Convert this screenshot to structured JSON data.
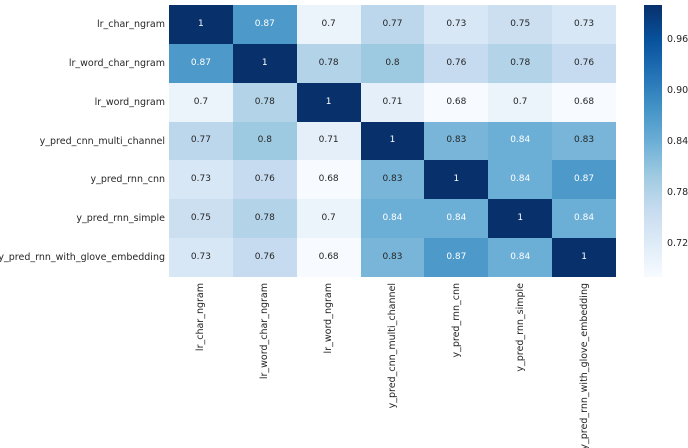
{
  "chart_data": {
    "type": "heatmap",
    "title": "",
    "xlabel": "",
    "ylabel": "",
    "categories": [
      "lr_char_ngram",
      "lr_word_char_ngram",
      "lr_word_ngram",
      "y_pred_cnn_multi_channel",
      "y_pred_rnn_cnn",
      "y_pred_rnn_simple",
      "y_pred_rnn_with_glove_embedding"
    ],
    "matrix": [
      [
        1,
        0.87,
        0.7,
        0.77,
        0.73,
        0.75,
        0.73
      ],
      [
        0.87,
        1,
        0.78,
        0.8,
        0.76,
        0.78,
        0.76
      ],
      [
        0.7,
        0.78,
        1,
        0.71,
        0.68,
        0.7,
        0.68
      ],
      [
        0.77,
        0.8,
        0.71,
        1,
        0.83,
        0.84,
        0.83
      ],
      [
        0.73,
        0.76,
        0.68,
        0.83,
        1,
        0.84,
        0.87
      ],
      [
        0.75,
        0.78,
        0.7,
        0.84,
        0.84,
        1,
        0.84
      ],
      [
        0.73,
        0.76,
        0.68,
        0.83,
        0.87,
        0.84,
        1
      ]
    ],
    "annotated": true,
    "grid": false,
    "colormap": "Blues",
    "vmin": 0.68,
    "vmax": 1.0,
    "colorbar": {
      "position": "right",
      "tick_labels": [
        "0.96",
        "0.90",
        "0.84",
        "0.78",
        "0.72"
      ],
      "tick_values": [
        0.96,
        0.9,
        0.84,
        0.78,
        0.72
      ]
    },
    "colors": {
      "background": "#ffffff",
      "palette_blues": [
        "#f7fbff",
        "#deebf7",
        "#c6dbef",
        "#9ecae1",
        "#6baed6",
        "#4292c6",
        "#2171b5",
        "#08519c",
        "#08306b"
      ],
      "annotation_dark": "#262626",
      "annotation_light": "#ffffff",
      "tick_label_color": "#262626"
    }
  }
}
